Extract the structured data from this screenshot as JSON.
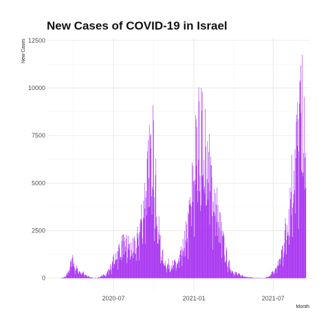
{
  "chart_data": {
    "type": "bar",
    "title": "New Cases of COVID-19 in Israel",
    "xlabel": "Month",
    "ylabel": "New Cases",
    "x_range": [
      "2020-02-01",
      "2021-09-22"
    ],
    "ylim": [
      -700,
      12600
    ],
    "y_ticks": [
      0,
      2500,
      5000,
      7500,
      10000,
      12500
    ],
    "y_tick_labels": [
      "0",
      "2500",
      "5000",
      "7500",
      "10000",
      "12500"
    ],
    "x_ticks": [
      "2020-07-01",
      "2021-01-01",
      "2021-07-01"
    ],
    "x_tick_labels": [
      "2020-07",
      "2021-01",
      "2021-07"
    ],
    "grid": true,
    "bar_color": "#a020f0",
    "series": [
      {
        "date_start": "2020-03-01",
        "date_end": "2021-09-14",
        "interval": "daily",
        "keypoints": [
          [
            "2020-03-01",
            0
          ],
          [
            "2020-03-12",
            60
          ],
          [
            "2020-03-20",
            350
          ],
          [
            "2020-03-26",
            750
          ],
          [
            "2020-03-28",
            1100
          ],
          [
            "2020-04-02",
            650
          ],
          [
            "2020-04-08",
            500
          ],
          [
            "2020-04-15",
            350
          ],
          [
            "2020-04-25",
            250
          ],
          [
            "2020-05-05",
            80
          ],
          [
            "2020-05-15",
            20
          ],
          [
            "2020-05-25",
            20
          ],
          [
            "2020-06-05",
            120
          ],
          [
            "2020-06-15",
            250
          ],
          [
            "2020-06-25",
            600
          ],
          [
            "2020-07-05",
            1100
          ],
          [
            "2020-07-15",
            1600
          ],
          [
            "2020-07-25",
            1800
          ],
          [
            "2020-08-05",
            1700
          ],
          [
            "2020-08-15",
            1500
          ],
          [
            "2020-08-25",
            2000
          ],
          [
            "2020-09-05",
            3500
          ],
          [
            "2020-09-15",
            5000
          ],
          [
            "2020-09-23",
            6200
          ],
          [
            "2020-09-30",
            7000
          ],
          [
            "2020-10-05",
            5000
          ],
          [
            "2020-10-12",
            2500
          ],
          [
            "2020-10-20",
            1200
          ],
          [
            "2020-10-30",
            750
          ],
          [
            "2020-11-15",
            700
          ],
          [
            "2020-11-25",
            800
          ],
          [
            "2020-12-05",
            1300
          ],
          [
            "2020-12-15",
            2300
          ],
          [
            "2020-12-25",
            4000
          ],
          [
            "2021-01-05",
            6500
          ],
          [
            "2021-01-12",
            7500
          ],
          [
            "2021-01-18",
            7800
          ],
          [
            "2021-01-25",
            6500
          ],
          [
            "2021-02-01",
            6000
          ],
          [
            "2021-02-10",
            5000
          ],
          [
            "2021-02-20",
            4000
          ],
          [
            "2021-03-01",
            2800
          ],
          [
            "2021-03-10",
            1800
          ],
          [
            "2021-03-20",
            800
          ],
          [
            "2021-04-01",
            350
          ],
          [
            "2021-04-15",
            180
          ],
          [
            "2021-05-01",
            80
          ],
          [
            "2021-05-20",
            20
          ],
          [
            "2021-06-10",
            10
          ],
          [
            "2021-06-20",
            80
          ],
          [
            "2021-06-28",
            250
          ],
          [
            "2021-07-05",
            400
          ],
          [
            "2021-07-15",
            900
          ],
          [
            "2021-07-25",
            1800
          ],
          [
            "2021-08-05",
            3500
          ],
          [
            "2021-08-15",
            5500
          ],
          [
            "2021-08-25",
            7000
          ],
          [
            "2021-09-01",
            8000
          ],
          [
            "2021-09-07",
            8500
          ],
          [
            "2021-09-14",
            6000
          ]
        ],
        "peaks": [
          [
            "2020-09-29",
            9100
          ],
          [
            "2020-10-01",
            8300
          ],
          [
            "2021-01-18",
            10000
          ],
          [
            "2021-01-13",
            9300
          ],
          [
            "2021-01-27",
            8900
          ],
          [
            "2021-09-02",
            11200
          ],
          [
            "2021-09-01",
            10400
          ],
          [
            "2021-08-24",
            8600
          ]
        ]
      }
    ]
  }
}
